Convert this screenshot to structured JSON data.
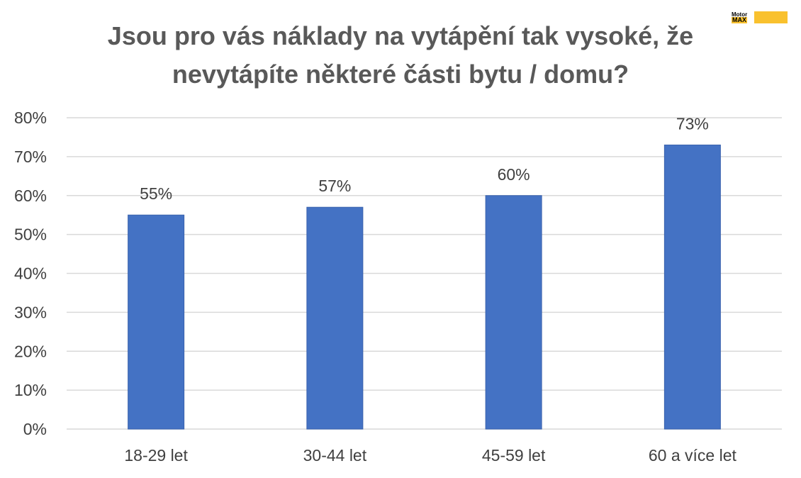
{
  "chart_data": {
    "type": "bar",
    "title_lines": [
      "Jsou pro vás náklady na vytápění tak vysoké, že",
      "nevytápíte některé části bytu / domu?"
    ],
    "categories": [
      "18-29 let",
      "30-44 let",
      "45-59 let",
      "60 a více let"
    ],
    "values": [
      55,
      57,
      60,
      73
    ],
    "data_labels": [
      "55%",
      "57%",
      "60%",
      "73%"
    ],
    "y_ticks": [
      0,
      10,
      20,
      30,
      40,
      50,
      60,
      70,
      80
    ],
    "y_tick_labels": [
      "0%",
      "10%",
      "20%",
      "30%",
      "40%",
      "50%",
      "60%",
      "70%",
      "80%"
    ],
    "ylim": [
      0,
      80
    ],
    "xlabel": "",
    "ylabel": "",
    "grid": true,
    "legend": "none",
    "bar_color": "#4472c4",
    "grid_color": "#d9d9d9",
    "text_color": "#404040",
    "title_color": "#595959"
  },
  "logo": {
    "top_text": "Motor",
    "bottom_text": "MAX",
    "color": "#f9c12e"
  }
}
